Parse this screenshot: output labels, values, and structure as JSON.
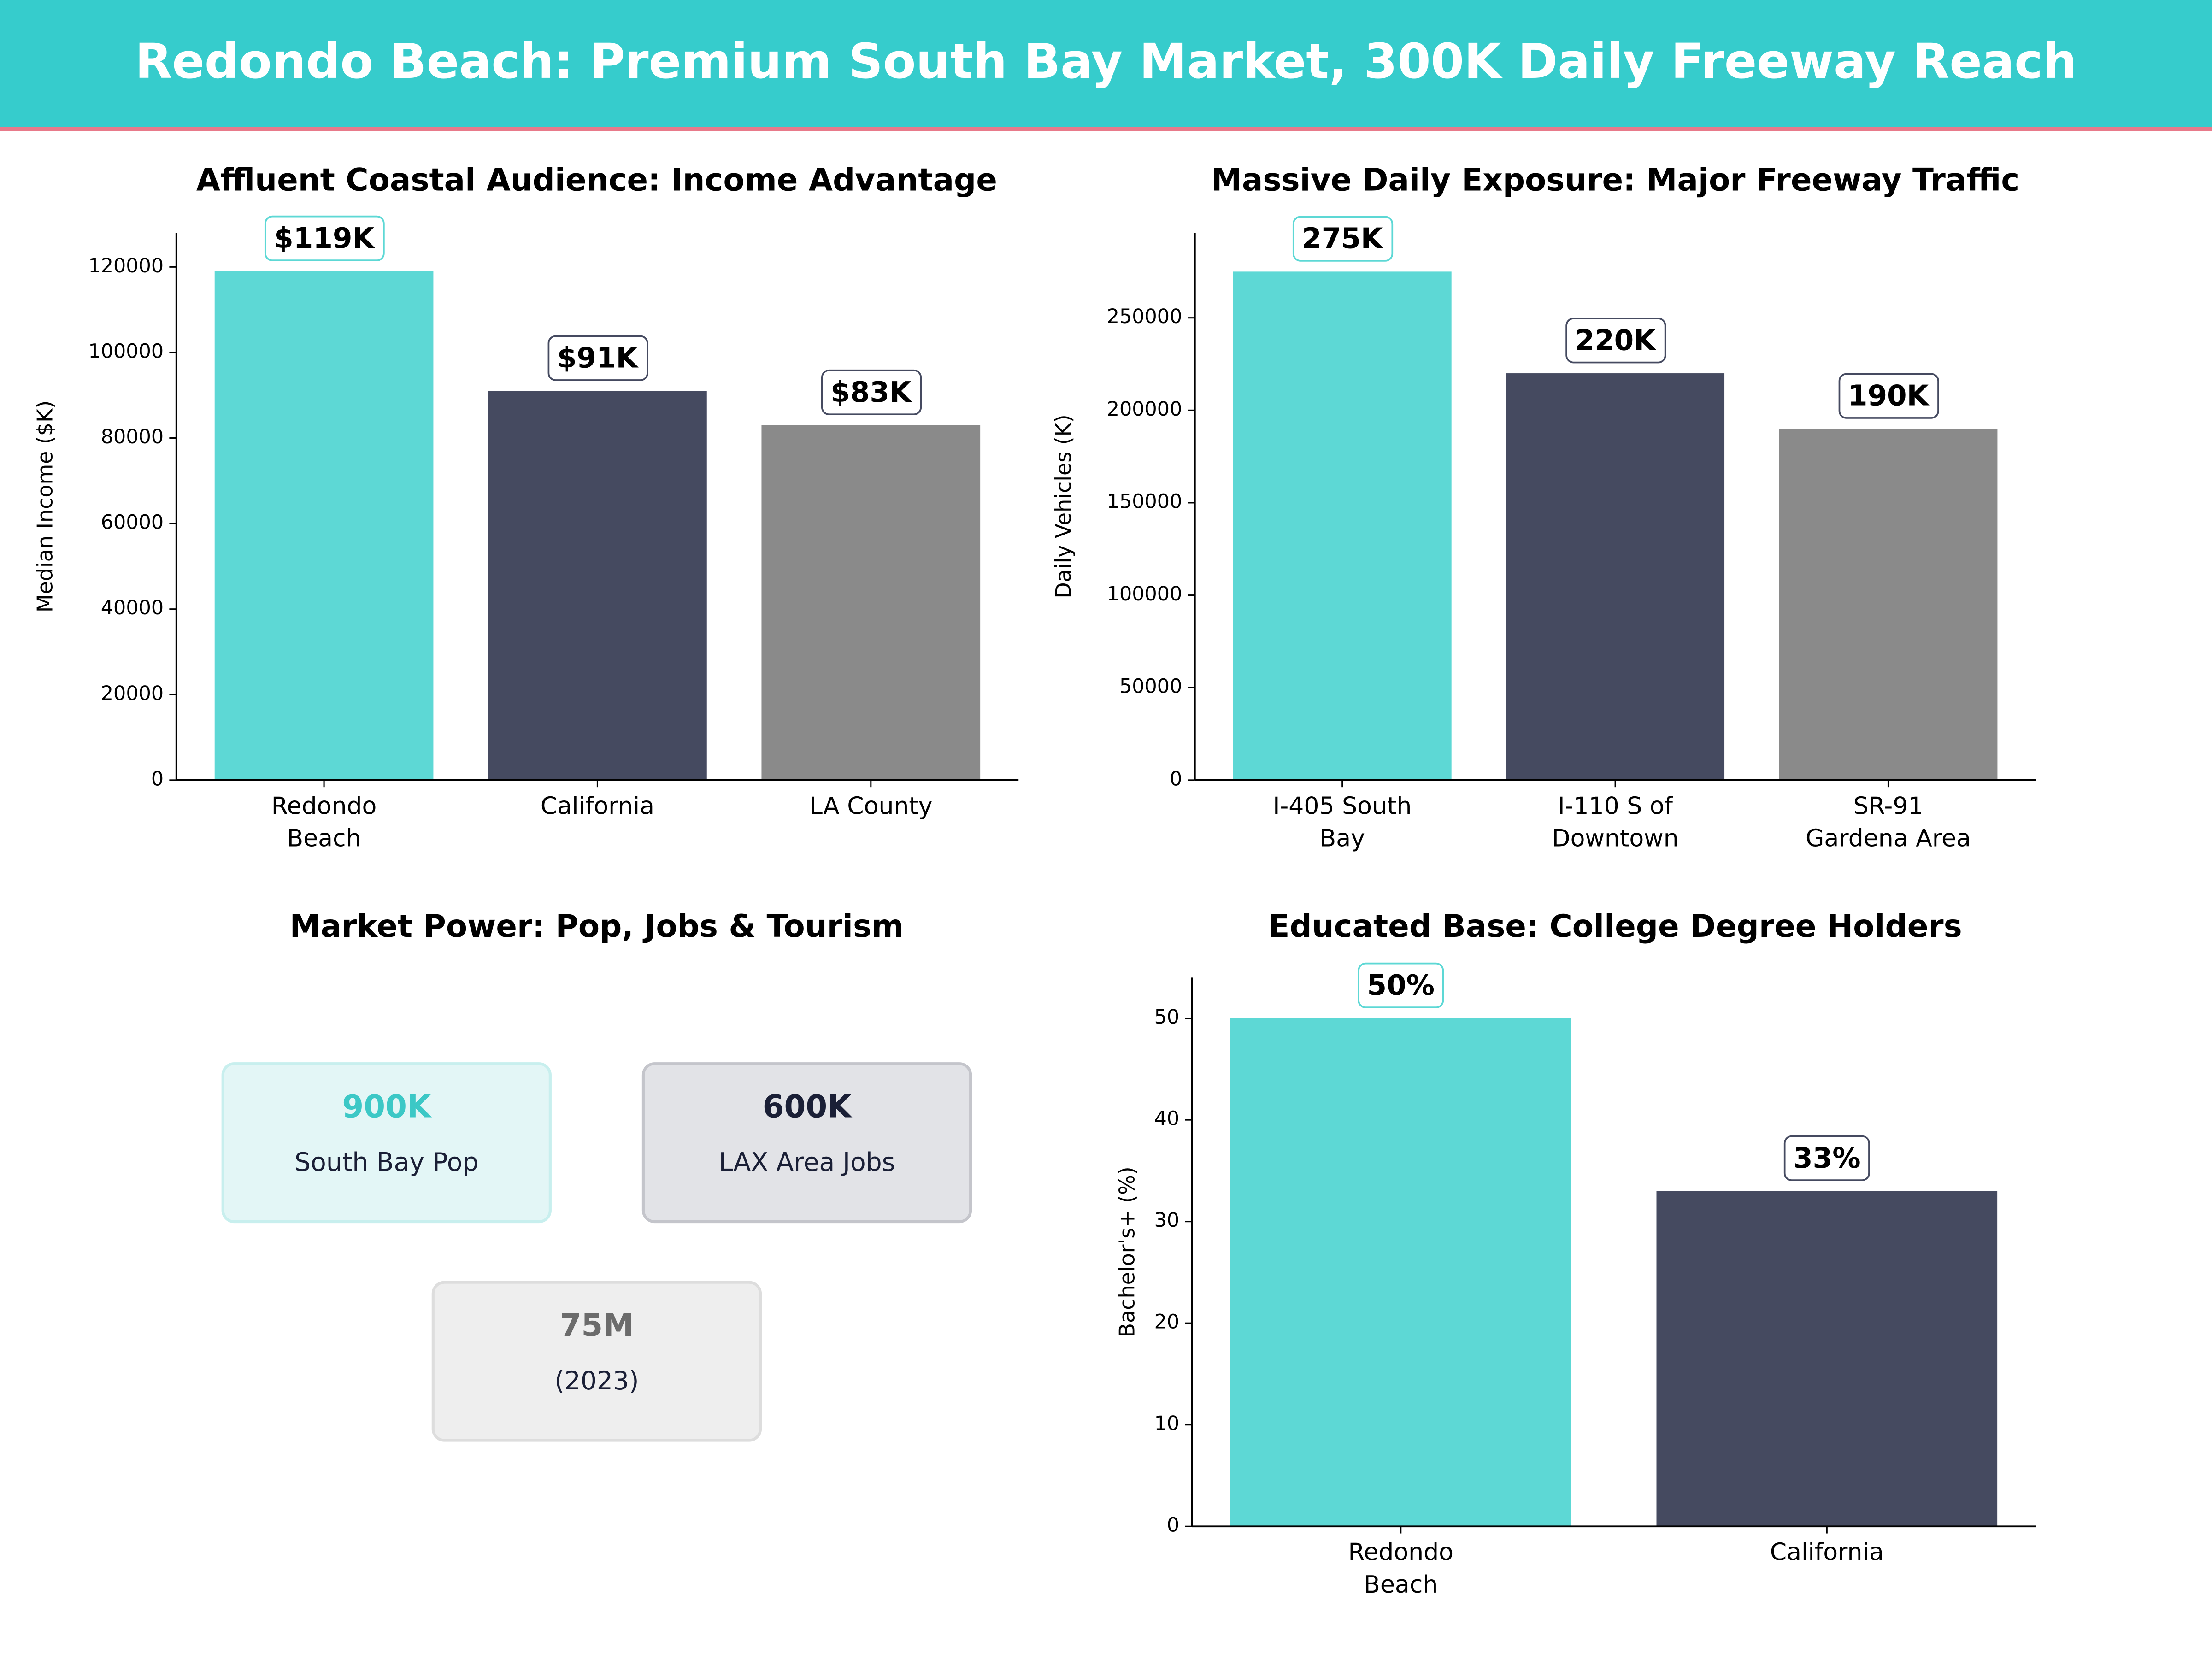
{
  "title": "Redondo Beach: Premium South Bay Market, 300K Daily Freeway Reach",
  "chart_data": [
    {
      "type": "bar",
      "title": "Affluent Coastal Audience: Income Advantage",
      "y_label": "Median Income ($K)",
      "categories": [
        "Redondo Beach",
        "California",
        "LA County"
      ],
      "values": [
        119000,
        91000,
        83000
      ],
      "value_labels": [
        "$119K",
        "$91K",
        "$83K"
      ],
      "colors": [
        "#5dd8d5",
        "#454a60",
        "#8a8a8a"
      ],
      "ylim": [
        0,
        128000
      ],
      "yticks": [
        0,
        20000,
        40000,
        60000,
        80000,
        100000,
        120000
      ]
    },
    {
      "type": "bar",
      "title": "Massive Daily Exposure: Major Freeway Traffic",
      "y_label": "Daily Vehicles (K)",
      "categories": [
        "I-405 South Bay",
        "I-110 S of Downtown",
        "SR-91 Gardena Area"
      ],
      "values": [
        275000,
        220000,
        190000
      ],
      "value_labels": [
        "275K",
        "220K",
        "190K"
      ],
      "colors": [
        "#5dd8d5",
        "#454a60",
        "#8a8a8a"
      ],
      "ylim": [
        0,
        296000
      ],
      "yticks": [
        0,
        50000,
        100000,
        150000,
        200000,
        250000
      ]
    },
    {
      "type": "cards",
      "title": "Market Power: Pop, Jobs & Tourism",
      "cards": [
        {
          "value": "900K",
          "label": "South Bay Pop",
          "color": "#3cc8c6"
        },
        {
          "value": "600K",
          "label": "LAX Area Jobs",
          "color": "#1a1f36"
        },
        {
          "value": "75M",
          "label": "(2023)",
          "color": "#6b6b6b"
        }
      ]
    },
    {
      "type": "bar",
      "title": "Educated Base: College Degree Holders",
      "y_label": "Bachelor's+ (%)",
      "categories": [
        "Redondo Beach",
        "California"
      ],
      "values": [
        50,
        33
      ],
      "value_labels": [
        "50%",
        "33%"
      ],
      "colors": [
        "#5dd8d5",
        "#454a60"
      ],
      "ylim": [
        0,
        54
      ],
      "yticks": [
        0,
        10,
        20,
        30,
        40,
        50
      ]
    }
  ]
}
